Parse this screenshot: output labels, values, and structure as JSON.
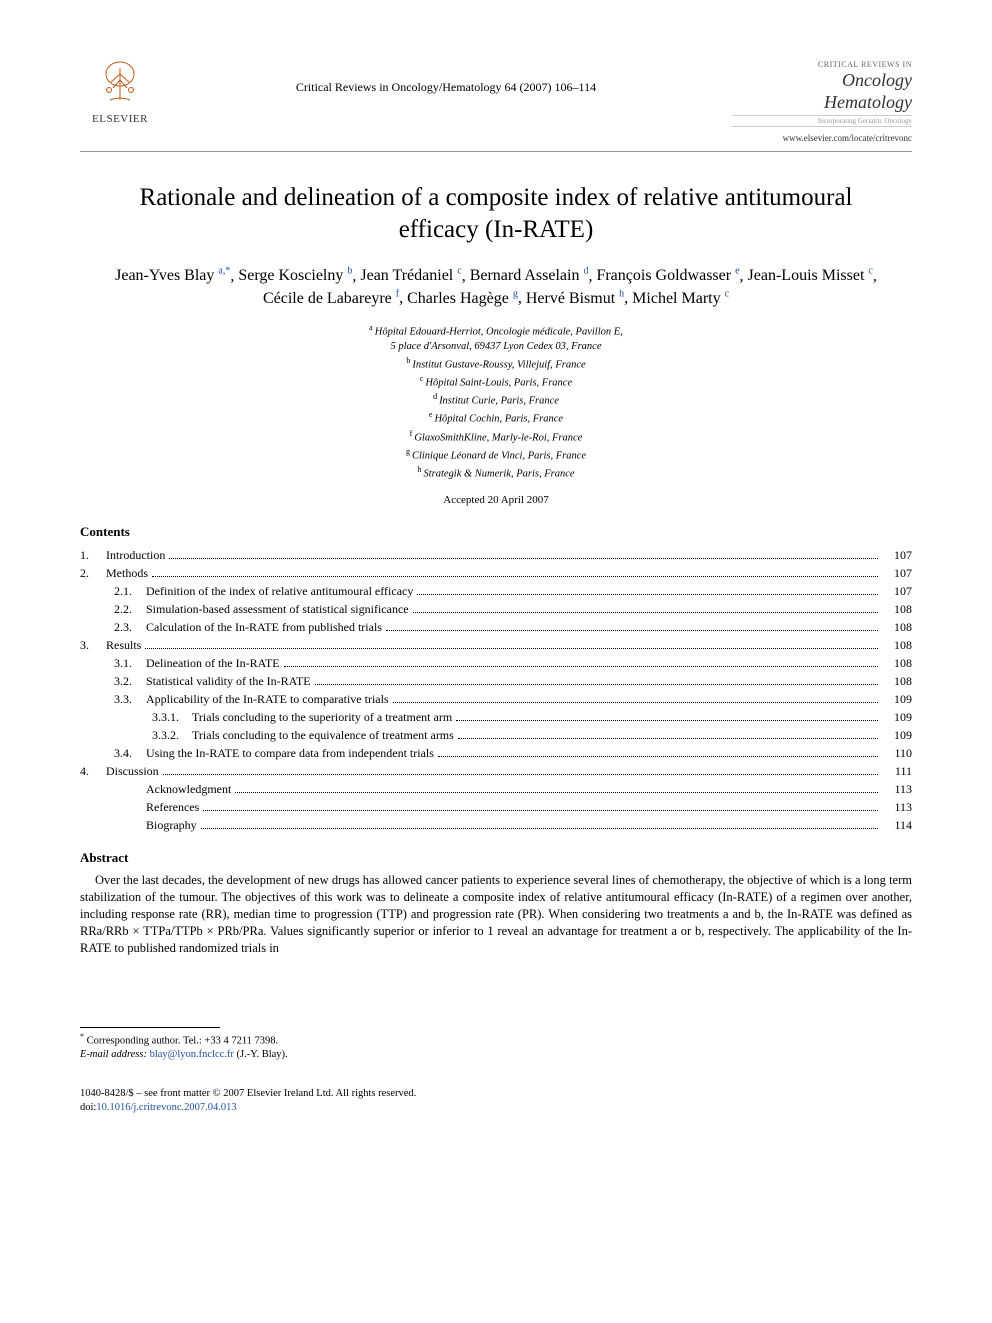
{
  "header": {
    "publisher": "ELSEVIER",
    "journal_ref": "Critical Reviews in Oncology/Hematology 64 (2007) 106–114",
    "journal_small": "CRITICAL REVIEWS IN",
    "journal_name1": "Oncology",
    "journal_name2": "Hematology",
    "journal_sub": "Incorporating Geriatric Oncology",
    "journal_url": "www.elsevier.com/locate/critrevonc"
  },
  "title": "Rationale and delineation of a composite index of relative antitumoural efficacy (In-RATE)",
  "authors": [
    {
      "name": "Jean-Yves Blay",
      "sup": "a,*"
    },
    {
      "name": "Serge Koscielny",
      "sup": "b"
    },
    {
      "name": "Jean Trédaniel",
      "sup": "c"
    },
    {
      "name": "Bernard Asselain",
      "sup": "d"
    },
    {
      "name": "François Goldwasser",
      "sup": "e"
    },
    {
      "name": "Jean-Louis Misset",
      "sup": "c"
    },
    {
      "name": "Cécile de Labareyre",
      "sup": "f"
    },
    {
      "name": "Charles Hagège",
      "sup": "g"
    },
    {
      "name": "Hervé Bismut",
      "sup": "h"
    },
    {
      "name": "Michel Marty",
      "sup": "c"
    }
  ],
  "affiliations": [
    {
      "sup": "a",
      "text": "Hôpital Edouard-Herriot, Oncologie médicale, Pavillon E,"
    },
    {
      "sup": "",
      "text": "5 place d'Arsonval, 69437 Lyon Cedex 03, France"
    },
    {
      "sup": "b",
      "text": "Institut Gustave-Roussy, Villejuif, France"
    },
    {
      "sup": "c",
      "text": "Hôpital Saint-Louis, Paris, France"
    },
    {
      "sup": "d",
      "text": "Institut Curie, Paris, France"
    },
    {
      "sup": "e",
      "text": "Hôpital Cochin, Paris, France"
    },
    {
      "sup": "f",
      "text": "GlaxoSmithKline, Marly-le-Roi, France"
    },
    {
      "sup": "g",
      "text": "Clinique Léonard de Vinci, Paris, France"
    },
    {
      "sup": "h",
      "text": "Strategik & Numerik, Paris, France"
    }
  ],
  "accepted": "Accepted 20 April 2007",
  "contents_label": "Contents",
  "toc": [
    {
      "level": 0,
      "num": "1.",
      "label": "Introduction",
      "page": "107"
    },
    {
      "level": 0,
      "num": "2.",
      "label": "Methods",
      "page": "107"
    },
    {
      "level": 1,
      "num": "2.1.",
      "label": "Definition of the index of relative antitumoural efficacy",
      "page": "107"
    },
    {
      "level": 1,
      "num": "2.2.",
      "label": "Simulation-based assessment of statistical significance",
      "page": "108"
    },
    {
      "level": 1,
      "num": "2.3.",
      "label": "Calculation of the In-RATE from published trials",
      "page": "108"
    },
    {
      "level": 0,
      "num": "3.",
      "label": "Results",
      "page": "108"
    },
    {
      "level": 1,
      "num": "3.1.",
      "label": "Delineation of the In-RATE",
      "page": "108"
    },
    {
      "level": 1,
      "num": "3.2.",
      "label": "Statistical validity of the In-RATE",
      "page": "108"
    },
    {
      "level": 1,
      "num": "3.3.",
      "label": "Applicability of the In-RATE to comparative trials",
      "page": "109"
    },
    {
      "level": 2,
      "num": "3.3.1.",
      "label": "Trials concluding to the superiority of a treatment arm",
      "page": "109"
    },
    {
      "level": 2,
      "num": "3.3.2.",
      "label": "Trials concluding to the equivalence of treatment arms",
      "page": "109"
    },
    {
      "level": 1,
      "num": "3.4.",
      "label": "Using the In-RATE to compare data from independent trials",
      "page": "110"
    },
    {
      "level": 0,
      "num": "4.",
      "label": "Discussion",
      "page": "111"
    },
    {
      "level": 1,
      "num": "",
      "label": "Acknowledgment",
      "page": "113"
    },
    {
      "level": 1,
      "num": "",
      "label": "References",
      "page": "113"
    },
    {
      "level": 1,
      "num": "",
      "label": "Biography",
      "page": "114"
    }
  ],
  "abstract_label": "Abstract",
  "abstract": "Over the last decades, the development of new drugs has allowed cancer patients to experience several lines of chemotherapy, the objective of which is a long term stabilization of the tumour. The objectives of this work was to delineate a composite index of relative antitumoural efficacy (In-RATE) of a regimen over another, including response rate (RR), median time to progression (TTP) and progression rate (PR). When considering two treatments a and b, the In-RATE was defined as RRa/RRb × TTPa/TTPb × PRb/PRa. Values significantly superior or inferior to 1 reveal an advantage for treatment a or b, respectively. The applicability of the In-RATE to published randomized trials in",
  "footnote": {
    "marker": "*",
    "label": "Corresponding author. Tel.: +33 4 7211 7398.",
    "email_label": "E-mail address:",
    "email": "blay@lyon.fnclcc.fr",
    "email_who": "(J.-Y. Blay)."
  },
  "copyright": {
    "line1": "1040-8428/$ – see front matter © 2007 Elsevier Ireland Ltd. All rights reserved.",
    "doi_label": "doi:",
    "doi": "10.1016/j.critrevonc.2007.04.013"
  }
}
